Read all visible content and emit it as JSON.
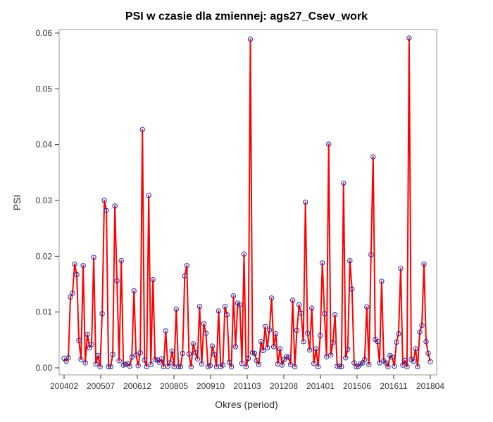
{
  "chart_data": {
    "type": "line",
    "title": "PSI w czasie dla zmiennej: ags27_Csev_work",
    "xlabel": "Okres (period)",
    "ylabel": "PSI",
    "x_tick_labels": [
      "200402",
      "200507",
      "200612",
      "200805",
      "200910",
      "201103",
      "201208",
      "201401",
      "201506",
      "201611",
      "201804"
    ],
    "y_tick_labels": [
      "0.00",
      "0.01",
      "0.02",
      "0.03",
      "0.04",
      "0.05",
      "0.06"
    ],
    "y_ticks": [
      0,
      0.01,
      0.02,
      0.03,
      0.04,
      0.05,
      0.06
    ],
    "ylim": [
      0,
      0.06
    ],
    "grid": false,
    "legend": "none",
    "colors": {
      "line": "#ff0000",
      "marker": "#1a2ea6"
    },
    "series": [
      {
        "values": [
          0.0017,
          0.0012,
          0.0018,
          0.0127,
          0.0134,
          0.0186,
          0.0167,
          0.0049,
          0.0015,
          0.0183,
          0.0009,
          0.006,
          0.0036,
          0.0042,
          0.0198,
          0.0007,
          0.0022,
          0.0002,
          0.0097,
          0.03,
          0.0282,
          0.0002,
          0.0002,
          0.0024,
          0.029,
          0.0156,
          0.0013,
          0.0192,
          0.0005,
          0.0006,
          0.0008,
          0.0003,
          0.0019,
          0.0138,
          0.0023,
          0.0004,
          0.0027,
          0.0427,
          0.0014,
          0.0002,
          0.0309,
          0.0006,
          0.0158,
          0.0015,
          0.0014,
          0.001,
          0.0016,
          0.0002,
          0.0066,
          0.0003,
          0.0009,
          0.003,
          0.0002,
          0.0105,
          0.0002,
          0.0002,
          0.0026,
          0.0165,
          0.0183,
          0.0025,
          0.0002,
          0.0043,
          0.0027,
          0.0016,
          0.011,
          0.0007,
          0.0079,
          0.0062,
          0.0002,
          0.0004,
          0.0039,
          0.0024,
          0.0002,
          0.0102,
          0.0002,
          0.0005,
          0.011,
          0.0095,
          0.001,
          0.0002,
          0.0129,
          0.0038,
          0.0116,
          0.0113,
          0.0008,
          0.0204,
          0.0002,
          0.0017,
          0.0589,
          0.0027,
          0.0026,
          0.0013,
          0.0006,
          0.0047,
          0.0031,
          0.0074,
          0.0036,
          0.0068,
          0.0125,
          0.0038,
          0.0061,
          0.0007,
          0.0034,
          0.0005,
          0.0015,
          0.002,
          0.0019,
          0.0006,
          0.0121,
          0.0002,
          0.0067,
          0.0113,
          0.0098,
          0.0047,
          0.0297,
          0.0062,
          0.0032,
          0.0107,
          0.0008,
          0.0034,
          0.0002,
          0.0058,
          0.0188,
          0.0097,
          0.002,
          0.0401,
          0.0023,
          0.0045,
          0.0095,
          0.0003,
          0.0003,
          0.0002,
          0.0331,
          0.0018,
          0.0033,
          0.0192,
          0.0141,
          0.0009,
          0.0002,
          0.0003,
          0.0007,
          0.0009,
          0.0015,
          0.0109,
          0.0006,
          0.0203,
          0.0378,
          0.0051,
          0.0047,
          0.0009,
          0.0155,
          0.0013,
          0.0009,
          0.0002,
          0.0022,
          0.0019,
          0.0003,
          0.0046,
          0.0061,
          0.0178,
          0.0005,
          0.0013,
          0.0002,
          0.0591,
          0.0015,
          0.0012,
          0.0034,
          0.0002,
          0.0064,
          0.0076,
          0.0186,
          0.0047,
          0.0026,
          0.0011
        ]
      }
    ]
  }
}
